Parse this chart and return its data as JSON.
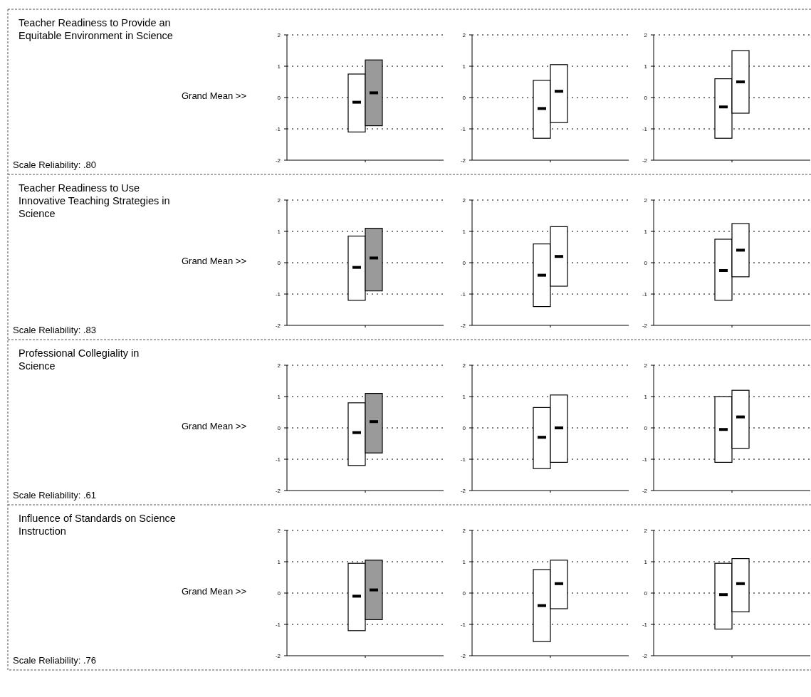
{
  "chart_data": [
    {
      "type": "other",
      "title": "Teacher Readiness to Provide an Equitable Environment in Science",
      "annotations": [
        "Grand Mean >>",
        "Scale Reliability: .80"
      ]
    },
    {
      "type": "bar",
      "categories": [
        null,
        null
      ],
      "series": [
        {
          "type": "bar",
          "colors": [
            "#ffffff",
            "#9a9a9a"
          ],
          "base": [
            -1.1,
            -0.9
          ],
          "values": [
            1.85,
            2.1
          ]
        },
        {
          "type": "scatter",
          "color": "#000000",
          "values": [
            -0.15,
            0.15
          ]
        }
      ],
      "ylim": [
        -2,
        2
      ],
      "yticks": [
        -2,
        -1,
        0,
        1,
        2
      ],
      "grid": "y",
      "tick_labels": "y",
      "marker": "square"
    },
    {
      "type": "bar",
      "categories": [
        null,
        null
      ],
      "series": [
        {
          "type": "bar",
          "colors": [
            "#ffffff",
            "#ffffff"
          ],
          "base": [
            -1.3,
            -0.8
          ],
          "values": [
            1.85,
            1.85
          ]
        },
        {
          "type": "scatter",
          "color": "#000000",
          "values": [
            -0.35,
            0.2
          ]
        }
      ],
      "ylim": [
        -2,
        2
      ],
      "yticks": [
        -2,
        -1,
        0,
        1,
        2
      ],
      "grid": "y",
      "tick_labels": "y",
      "marker": "square"
    },
    {
      "type": "bar",
      "categories": [
        null,
        null
      ],
      "series": [
        {
          "type": "bar",
          "colors": [
            "#ffffff",
            "#ffffff"
          ],
          "base": [
            -1.3,
            -0.5
          ],
          "values": [
            1.9,
            2.0
          ]
        },
        {
          "type": "scatter",
          "color": "#000000",
          "values": [
            -0.3,
            0.5
          ]
        }
      ],
      "ylim": [
        -2,
        2
      ],
      "yticks": [
        -2,
        -1,
        0,
        1,
        2
      ],
      "grid": "y",
      "tick_labels": "y",
      "marker": "square"
    },
    {
      "type": "other",
      "title": "Teacher Readiness to Use Innovative Teaching Strategies in Science",
      "annotations": [
        "Grand Mean >>",
        "Scale Reliability: .83"
      ]
    },
    {
      "type": "bar",
      "categories": [
        null,
        null
      ],
      "series": [
        {
          "type": "bar",
          "colors": [
            "#ffffff",
            "#9a9a9a"
          ],
          "base": [
            -1.2,
            -0.9
          ],
          "values": [
            2.05,
            2.0
          ]
        },
        {
          "type": "scatter",
          "color": "#000000",
          "values": [
            -0.15,
            0.15
          ]
        }
      ],
      "ylim": [
        -2,
        2
      ],
      "yticks": [
        -2,
        -1,
        0,
        1,
        2
      ],
      "grid": "y",
      "tick_labels": "y",
      "marker": "square"
    },
    {
      "type": "bar",
      "categories": [
        null,
        null
      ],
      "series": [
        {
          "type": "bar",
          "colors": [
            "#ffffff",
            "#ffffff"
          ],
          "base": [
            -1.4,
            -0.75
          ],
          "values": [
            2.0,
            1.9
          ]
        },
        {
          "type": "scatter",
          "color": "#000000",
          "values": [
            -0.4,
            0.2
          ]
        }
      ],
      "ylim": [
        -2,
        2
      ],
      "yticks": [
        -2,
        -1,
        0,
        1,
        2
      ],
      "grid": "y",
      "tick_labels": "y",
      "marker": "square"
    },
    {
      "type": "bar",
      "categories": [
        null,
        null
      ],
      "series": [
        {
          "type": "bar",
          "colors": [
            "#ffffff",
            "#ffffff"
          ],
          "base": [
            -1.2,
            -0.45
          ],
          "values": [
            1.95,
            1.7
          ]
        },
        {
          "type": "scatter",
          "color": "#000000",
          "values": [
            -0.25,
            0.4
          ]
        }
      ],
      "ylim": [
        -2,
        2
      ],
      "yticks": [
        -2,
        -1,
        0,
        1,
        2
      ],
      "grid": "y",
      "tick_labels": "y",
      "marker": "square"
    },
    {
      "type": "other",
      "title": "Professional Collegiality in Science",
      "annotations": [
        "Grand Mean >>",
        "Scale Reliability: .61"
      ]
    },
    {
      "type": "bar",
      "categories": [
        null,
        null
      ],
      "series": [
        {
          "type": "bar",
          "colors": [
            "#ffffff",
            "#9a9a9a"
          ],
          "base": [
            -1.2,
            -0.8
          ],
          "values": [
            2.0,
            1.9
          ]
        },
        {
          "type": "scatter",
          "color": "#000000",
          "values": [
            -0.15,
            0.2
          ]
        }
      ],
      "ylim": [
        -2,
        2
      ],
      "yticks": [
        -2,
        -1,
        0,
        1,
        2
      ],
      "grid": "y",
      "tick_labels": "y",
      "marker": "square"
    },
    {
      "type": "bar",
      "categories": [
        null,
        null
      ],
      "series": [
        {
          "type": "bar",
          "colors": [
            "#ffffff",
            "#ffffff"
          ],
          "base": [
            -1.3,
            -1.1
          ],
          "values": [
            1.95,
            2.15
          ]
        },
        {
          "type": "scatter",
          "color": "#000000",
          "values": [
            -0.3,
            0
          ]
        }
      ],
      "ylim": [
        -2,
        2
      ],
      "yticks": [
        -2,
        -1,
        0,
        1,
        2
      ],
      "grid": "y",
      "tick_labels": "y",
      "marker": "square"
    },
    {
      "type": "bar",
      "categories": [
        null,
        null
      ],
      "series": [
        {
          "type": "bar",
          "colors": [
            "#ffffff",
            "#ffffff"
          ],
          "base": [
            -1.1,
            -0.65
          ],
          "values": [
            2.1,
            1.85
          ]
        },
        {
          "type": "scatter",
          "color": "#000000",
          "values": [
            -0.05,
            0.35
          ]
        }
      ],
      "ylim": [
        -2,
        2
      ],
      "yticks": [
        -2,
        -1,
        0,
        1,
        2
      ],
      "grid": "y",
      "tick_labels": "y",
      "marker": "square"
    },
    {
      "type": "other",
      "title": "Influence of Standards on Science Instruction",
      "annotations": [
        "Grand Mean >>",
        "Scale Reliability: .76"
      ]
    },
    {
      "type": "bar",
      "categories": [
        null,
        null
      ],
      "series": [
        {
          "type": "bar",
          "colors": [
            "#ffffff",
            "#9a9a9a"
          ],
          "base": [
            -1.2,
            -0.85
          ],
          "values": [
            2.15,
            1.9
          ]
        },
        {
          "type": "scatter",
          "color": "#000000",
          "values": [
            -0.1,
            0.1
          ]
        }
      ],
      "ylim": [
        -2,
        2
      ],
      "yticks": [
        -2,
        -1,
        0,
        1,
        2
      ],
      "grid": "y",
      "tick_labels": "y",
      "marker": "square"
    },
    {
      "type": "bar",
      "categories": [
        null,
        null
      ],
      "series": [
        {
          "type": "bar",
          "colors": [
            "#ffffff",
            "#ffffff"
          ],
          "base": [
            -1.55,
            -0.5
          ],
          "values": [
            2.3,
            1.55
          ]
        },
        {
          "type": "scatter",
          "color": "#000000",
          "values": [
            -0.4,
            0.3
          ]
        }
      ],
      "ylim": [
        -2,
        2
      ],
      "yticks": [
        -2,
        -1,
        0,
        1,
        2
      ],
      "grid": "y",
      "tick_labels": "y",
      "marker": "square"
    },
    {
      "type": "bar",
      "categories": [
        null,
        null
      ],
      "series": [
        {
          "type": "bar",
          "colors": [
            "#ffffff",
            "#ffffff"
          ],
          "base": [
            -1.15,
            -0.6
          ],
          "values": [
            2.1,
            1.7
          ]
        },
        {
          "type": "scatter",
          "color": "#000000",
          "values": [
            -0.05,
            0.3
          ]
        }
      ],
      "ylim": [
        -2,
        2
      ],
      "yticks": [
        -2,
        -1,
        0,
        1,
        2
      ],
      "grid": "y",
      "tick_labels": "y",
      "marker": "square"
    }
  ]
}
